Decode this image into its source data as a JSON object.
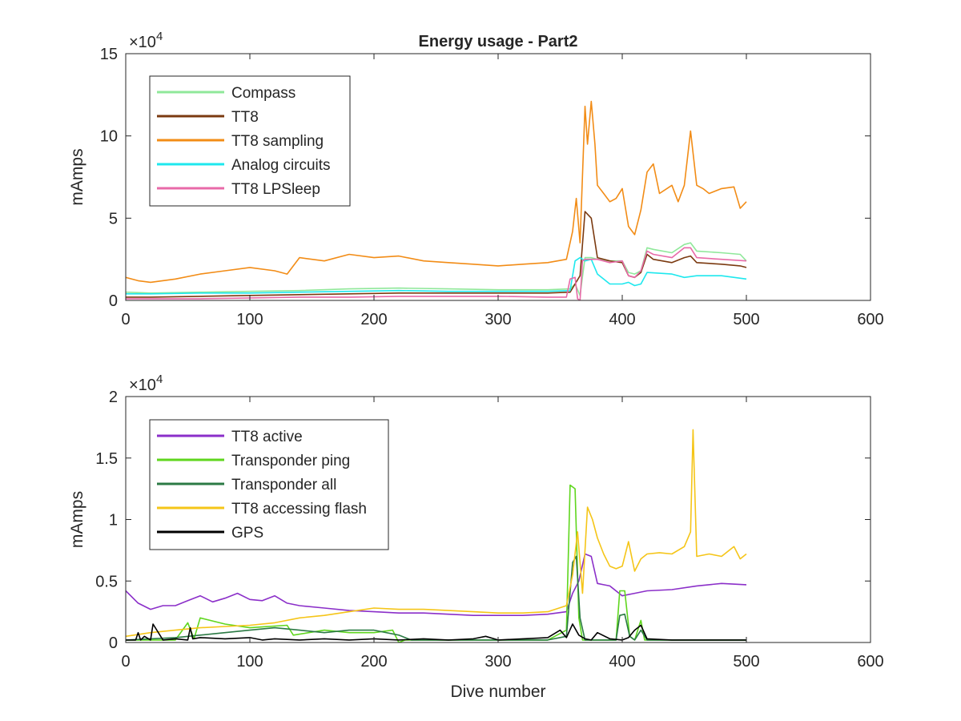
{
  "chart_data": [
    {
      "type": "line",
      "title": "Energy usage - Part2",
      "xlabel": "",
      "ylabel": "mAmps",
      "exponent_label": "×10",
      "exponent_power": "4",
      "xlim": [
        0,
        600
      ],
      "ylim": [
        0,
        15
      ],
      "x_ticks": [
        "0",
        "100",
        "200",
        "300",
        "400",
        "500",
        "600"
      ],
      "y_ticks": [
        "0",
        "5",
        "10",
        "15"
      ],
      "legend_position": "top-left",
      "series": [
        {
          "name": "Compass",
          "color": "#8fe89a",
          "x": [
            0,
            20,
            60,
            100,
            140,
            180,
            220,
            260,
            300,
            340,
            358,
            362,
            366,
            370,
            375,
            380,
            390,
            400,
            405,
            410,
            415,
            420,
            425,
            440,
            450,
            455,
            460,
            480,
            495,
            500
          ],
          "values": [
            0.5,
            0.45,
            0.5,
            0.55,
            0.6,
            0.7,
            0.75,
            0.7,
            0.65,
            0.65,
            0.7,
            1.0,
            0.3,
            2.6,
            2.6,
            2.5,
            2.4,
            2.4,
            1.7,
            1.6,
            1.8,
            3.2,
            3.1,
            2.9,
            3.4,
            3.5,
            3.0,
            2.9,
            2.8,
            2.4
          ]
        },
        {
          "name": "TT8",
          "color": "#7b3a10",
          "x": [
            0,
            20,
            60,
            100,
            140,
            180,
            220,
            260,
            300,
            340,
            358,
            362,
            366,
            370,
            375,
            380,
            390,
            400,
            405,
            410,
            415,
            420,
            425,
            440,
            450,
            455,
            460,
            480,
            495,
            500
          ],
          "values": [
            0.2,
            0.2,
            0.25,
            0.3,
            0.35,
            0.4,
            0.45,
            0.45,
            0.45,
            0.45,
            0.5,
            1.0,
            1.5,
            5.4,
            5.0,
            2.6,
            2.4,
            2.3,
            1.5,
            1.4,
            1.7,
            2.8,
            2.5,
            2.3,
            2.6,
            2.7,
            2.3,
            2.2,
            2.1,
            2.0
          ]
        },
        {
          "name": "TT8 sampling",
          "color": "#f28c16",
          "x": [
            0,
            10,
            20,
            40,
            60,
            80,
            100,
            120,
            130,
            140,
            160,
            180,
            200,
            220,
            240,
            260,
            280,
            300,
            320,
            340,
            355,
            360,
            363,
            366,
            370,
            372,
            375,
            378,
            380,
            385,
            390,
            395,
            400,
            405,
            410,
            415,
            420,
            425,
            430,
            440,
            445,
            450,
            455,
            460,
            465,
            470,
            480,
            490,
            495,
            500
          ],
          "values": [
            1.4,
            1.2,
            1.1,
            1.3,
            1.6,
            1.8,
            2.0,
            1.8,
            1.6,
            2.6,
            2.4,
            2.8,
            2.6,
            2.7,
            2.4,
            2.3,
            2.2,
            2.1,
            2.2,
            2.3,
            2.5,
            4.2,
            6.2,
            3.5,
            11.8,
            9.5,
            12.1,
            9.5,
            7.0,
            6.5,
            6.0,
            6.2,
            6.8,
            4.5,
            4.0,
            5.5,
            7.8,
            8.3,
            6.5,
            7.0,
            6.0,
            7.0,
            10.3,
            7.0,
            6.8,
            6.5,
            6.8,
            6.9,
            5.6,
            6.0
          ]
        },
        {
          "name": "Analog circuits",
          "color": "#1ee8ee",
          "x": [
            0,
            20,
            60,
            100,
            140,
            180,
            220,
            260,
            300,
            340,
            358,
            362,
            366,
            370,
            375,
            380,
            390,
            400,
            405,
            410,
            415,
            420,
            440,
            450,
            460,
            480,
            500
          ],
          "values": [
            0.4,
            0.4,
            0.45,
            0.45,
            0.5,
            0.55,
            0.6,
            0.55,
            0.55,
            0.55,
            0.6,
            2.4,
            2.6,
            2.4,
            2.5,
            1.6,
            1.0,
            1.0,
            1.1,
            0.9,
            1.0,
            1.7,
            1.6,
            1.4,
            1.5,
            1.5,
            1.3
          ]
        },
        {
          "name": "TT8 LPSleep",
          "color": "#e86aa8",
          "x": [
            0,
            20,
            60,
            100,
            140,
            180,
            220,
            260,
            300,
            340,
            355,
            358,
            362,
            364,
            366,
            368,
            370,
            375,
            380,
            390,
            400,
            405,
            410,
            415,
            420,
            425,
            440,
            450,
            455,
            460,
            480,
            500
          ],
          "values": [
            0.1,
            0.1,
            0.1,
            0.15,
            0.2,
            0.2,
            0.25,
            0.25,
            0.25,
            0.2,
            0.2,
            1.3,
            1.4,
            0.1,
            0.0,
            2.4,
            2.5,
            2.5,
            2.5,
            2.3,
            2.4,
            1.5,
            1.4,
            1.8,
            3.0,
            2.8,
            2.6,
            3.2,
            3.2,
            2.6,
            2.5,
            2.4
          ]
        }
      ]
    },
    {
      "type": "line",
      "title": "",
      "xlabel": "Dive number",
      "ylabel": "mAmps",
      "exponent_label": "×10",
      "exponent_power": "4",
      "xlim": [
        0,
        600
      ],
      "ylim": [
        0,
        2
      ],
      "x_ticks": [
        "0",
        "100",
        "200",
        "300",
        "400",
        "500",
        "600"
      ],
      "y_ticks": [
        "0",
        "0.5",
        "1",
        "1.5",
        "2"
      ],
      "legend_position": "top-left",
      "series": [
        {
          "name": "TT8 active",
          "color": "#8b2fc9",
          "x": [
            0,
            10,
            20,
            30,
            40,
            50,
            60,
            70,
            80,
            90,
            100,
            110,
            120,
            130,
            140,
            160,
            180,
            200,
            220,
            240,
            260,
            280,
            300,
            320,
            340,
            355,
            360,
            365,
            370,
            375,
            380,
            385,
            390,
            400,
            410,
            420,
            440,
            460,
            480,
            500
          ],
          "values": [
            0.42,
            0.32,
            0.27,
            0.3,
            0.3,
            0.34,
            0.38,
            0.33,
            0.36,
            0.4,
            0.35,
            0.34,
            0.38,
            0.32,
            0.3,
            0.28,
            0.26,
            0.25,
            0.24,
            0.24,
            0.23,
            0.22,
            0.22,
            0.22,
            0.23,
            0.25,
            0.4,
            0.5,
            0.72,
            0.7,
            0.48,
            0.47,
            0.46,
            0.38,
            0.4,
            0.42,
            0.43,
            0.46,
            0.48,
            0.47
          ]
        },
        {
          "name": "Transponder ping",
          "color": "#5fd61e",
          "x": [
            0,
            40,
            50,
            55,
            60,
            80,
            100,
            130,
            135,
            160,
            180,
            200,
            215,
            220,
            225,
            240,
            260,
            280,
            300,
            320,
            340,
            355,
            358,
            362,
            365,
            368,
            370,
            375,
            380,
            395,
            398,
            402,
            406,
            410,
            415,
            418,
            420,
            440,
            460,
            480,
            500
          ],
          "values": [
            0.02,
            0.02,
            0.16,
            0.03,
            0.2,
            0.15,
            0.12,
            0.14,
            0.06,
            0.1,
            0.08,
            0.08,
            0.1,
            0.0,
            0.02,
            0.02,
            0.02,
            0.02,
            0.02,
            0.02,
            0.02,
            0.1,
            1.28,
            1.25,
            0.2,
            0.02,
            0.02,
            0.02,
            0.02,
            0.02,
            0.42,
            0.42,
            0.05,
            0.02,
            0.18,
            0.02,
            0.02,
            0.02,
            0.02,
            0.02,
            0.02
          ]
        },
        {
          "name": "Transponder all",
          "color": "#2b7a44",
          "x": [
            0,
            40,
            60,
            80,
            100,
            120,
            140,
            160,
            180,
            200,
            220,
            230,
            260,
            300,
            340,
            355,
            360,
            363,
            366,
            370,
            380,
            395,
            398,
            402,
            406,
            410,
            415,
            420,
            440,
            460,
            480,
            500
          ],
          "values": [
            0.02,
            0.04,
            0.06,
            0.08,
            0.1,
            0.12,
            0.1,
            0.08,
            0.1,
            0.1,
            0.06,
            0.02,
            0.02,
            0.02,
            0.02,
            0.05,
            0.65,
            0.7,
            0.2,
            0.02,
            0.02,
            0.02,
            0.22,
            0.23,
            0.05,
            0.02,
            0.1,
            0.02,
            0.02,
            0.02,
            0.02,
            0.02
          ]
        },
        {
          "name": "TT8 accessing flash",
          "color": "#f5c518",
          "x": [
            0,
            20,
            40,
            60,
            80,
            100,
            120,
            140,
            160,
            180,
            200,
            220,
            240,
            260,
            280,
            300,
            320,
            340,
            355,
            360,
            364,
            368,
            372,
            376,
            380,
            385,
            390,
            395,
            400,
            405,
            410,
            415,
            420,
            430,
            440,
            450,
            455,
            457,
            460,
            470,
            480,
            490,
            495,
            500
          ],
          "values": [
            0.05,
            0.08,
            0.1,
            0.12,
            0.13,
            0.14,
            0.16,
            0.2,
            0.22,
            0.25,
            0.28,
            0.27,
            0.27,
            0.26,
            0.25,
            0.24,
            0.24,
            0.25,
            0.3,
            0.55,
            0.9,
            0.4,
            1.1,
            1.0,
            0.85,
            0.72,
            0.62,
            0.6,
            0.62,
            0.82,
            0.58,
            0.68,
            0.72,
            0.73,
            0.72,
            0.78,
            0.9,
            1.73,
            0.7,
            0.72,
            0.7,
            0.78,
            0.68,
            0.72
          ]
        },
        {
          "name": "GPS",
          "color": "#000000",
          "x": [
            0,
            8,
            10,
            12,
            15,
            20,
            22,
            30,
            40,
            50,
            52,
            54,
            60,
            80,
            100,
            110,
            120,
            140,
            160,
            180,
            200,
            220,
            240,
            260,
            280,
            290,
            300,
            320,
            340,
            350,
            355,
            360,
            365,
            370,
            375,
            380,
            390,
            400,
            405,
            410,
            415,
            420,
            440,
            460,
            480,
            500
          ],
          "values": [
            0.02,
            0.02,
            0.08,
            0.02,
            0.05,
            0.02,
            0.15,
            0.02,
            0.03,
            0.02,
            0.12,
            0.03,
            0.04,
            0.03,
            0.04,
            0.02,
            0.03,
            0.02,
            0.03,
            0.02,
            0.03,
            0.02,
            0.03,
            0.02,
            0.03,
            0.05,
            0.02,
            0.03,
            0.04,
            0.1,
            0.04,
            0.15,
            0.06,
            0.03,
            0.02,
            0.08,
            0.03,
            0.02,
            0.04,
            0.1,
            0.14,
            0.03,
            0.02,
            0.02,
            0.02,
            0.02
          ]
        }
      ]
    }
  ]
}
